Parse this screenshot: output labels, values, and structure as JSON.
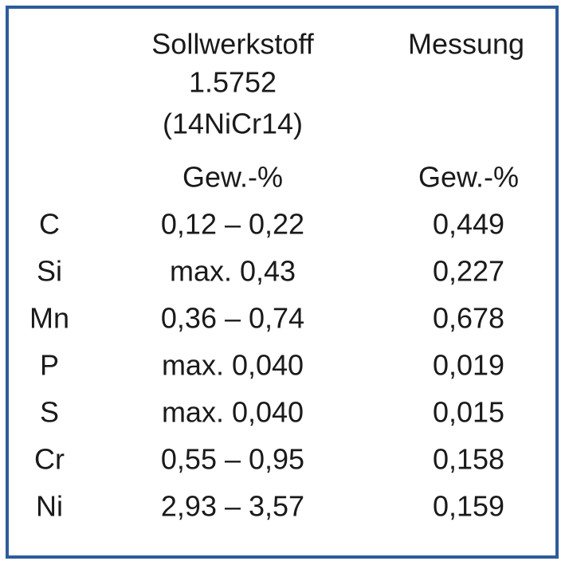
{
  "table": {
    "border_color": "#2f5c9a",
    "material_header": {
      "lines": [
        "Sollwerkstoff",
        "1.5752",
        "(14NiCr14)"
      ],
      "unit": "Gew.-%"
    },
    "measurement_header": {
      "title": "Messung",
      "unit": "Gew.-%"
    },
    "rows": [
      {
        "element": "C",
        "target": "0,12 – 0,22",
        "measured": "0,449",
        "color": "#ff0000"
      },
      {
        "element": "Si",
        "target": "max. 0,43",
        "measured": "0,227",
        "color": "#1a1a1a"
      },
      {
        "element": "Mn",
        "target": "0,36 – 0,74",
        "measured": "0,678",
        "color": "#1a1a1a"
      },
      {
        "element": "P",
        "target": "max. 0,040",
        "measured": "0,019",
        "color": "#1a1a1a"
      },
      {
        "element": "S",
        "target": "max. 0,040",
        "measured": "0,015",
        "color": "#1a1a1a"
      },
      {
        "element": "Cr",
        "target": "0,55 – 0,95",
        "measured": "0,158",
        "color": "#ff0000"
      },
      {
        "element": "Ni",
        "target": "2,93 – 3,57",
        "measured": "0,159",
        "color": "#ff0000"
      }
    ]
  }
}
